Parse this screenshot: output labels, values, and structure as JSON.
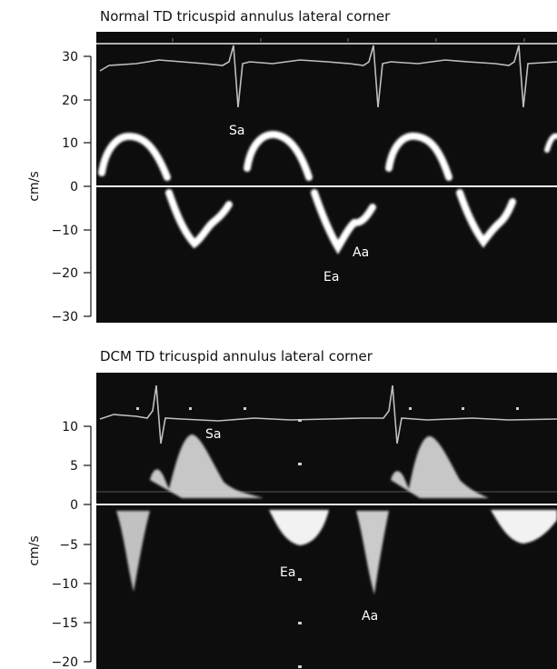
{
  "panels": [
    {
      "id": "normal",
      "title": "Normal TD tricuspid annulus lateral corner",
      "unit": "cm/s",
      "ticks": [
        "30",
        "20",
        "10",
        "0",
        "−10",
        "−20",
        "−30"
      ],
      "labels": {
        "sa": "Sa",
        "ea": "Ea",
        "aa": "Aa"
      }
    },
    {
      "id": "dcm",
      "title": "DCM TD tricuspid annulus lateral corner",
      "unit": "cm/s",
      "ticks": [
        "10",
        "5",
        "0",
        "−5",
        "−10",
        "−15",
        "−20"
      ],
      "labels": {
        "sa": "Sa",
        "ea": "Ea",
        "aa": "Aa"
      }
    }
  ],
  "colors": {
    "background": "#0d0d0d",
    "signal": "#ffffff",
    "ecg": "#bfbfbf"
  }
}
